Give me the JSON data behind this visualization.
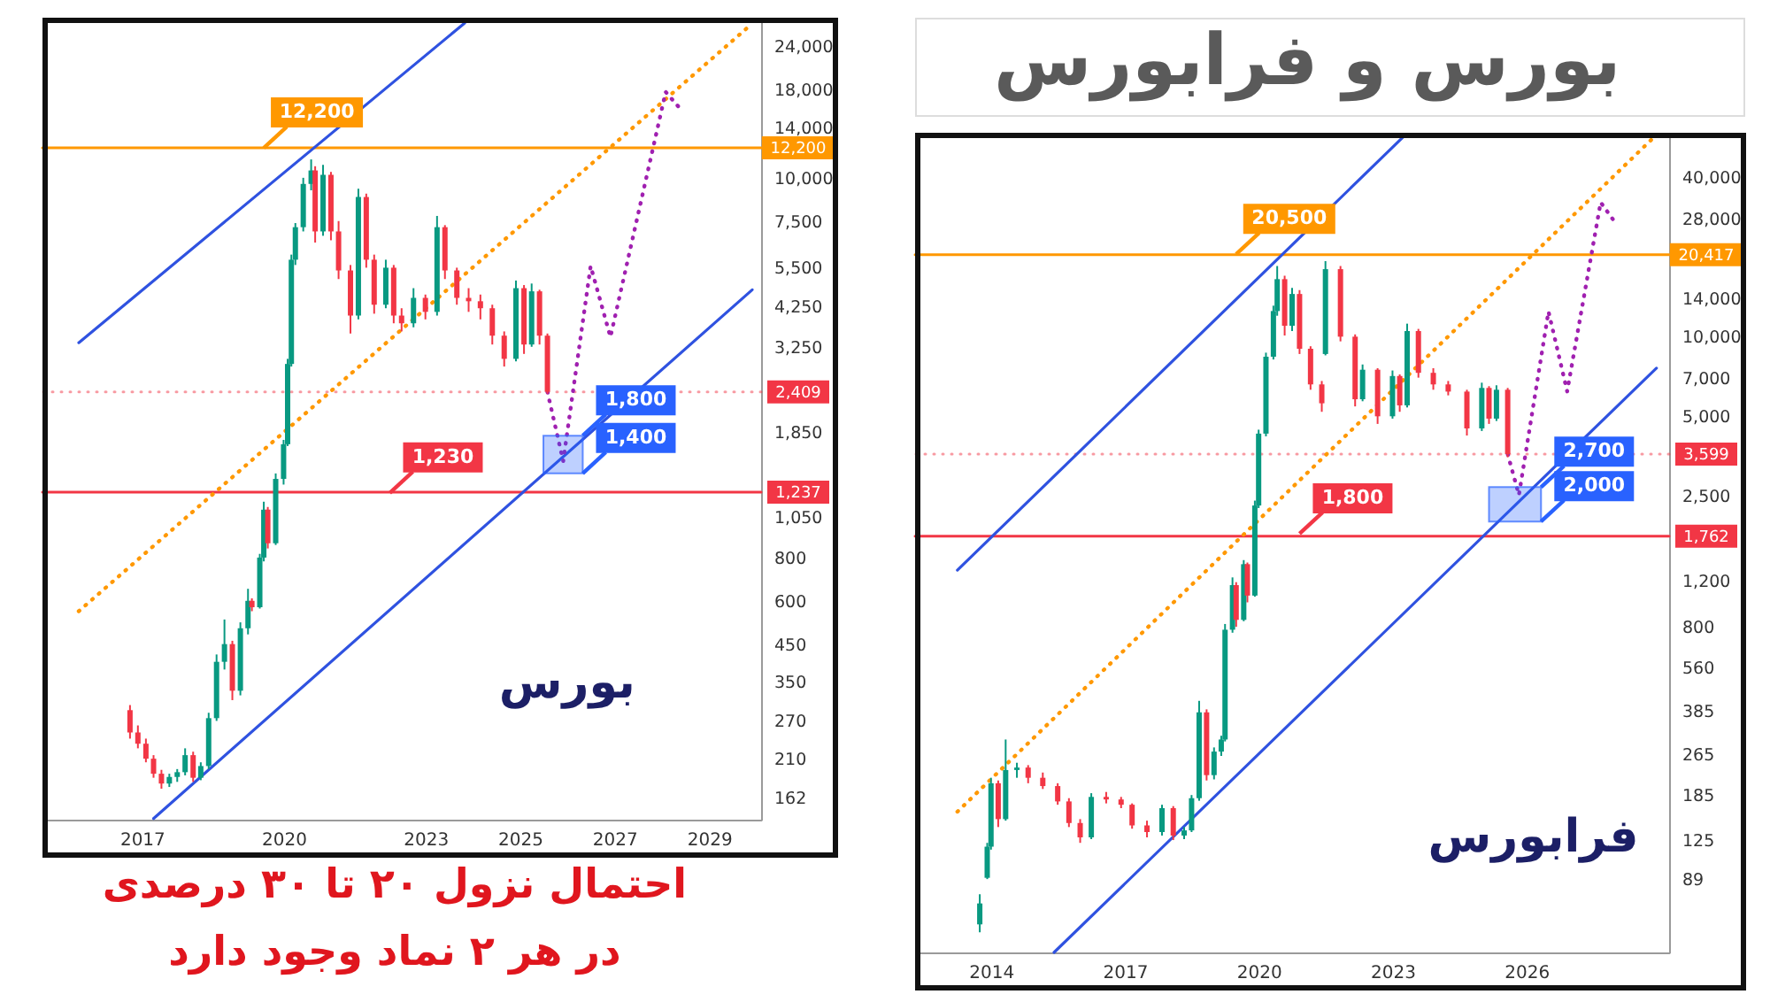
{
  "chart_data": [
    {
      "type": "candlestick",
      "x": [
        "2016-10",
        "2016-12",
        "2017-02",
        "2017-04",
        "2017-06",
        "2017-08",
        "2017-10",
        "2017-12",
        "2018-02",
        "2018-04",
        "2018-06",
        "2018-08",
        "2018-10",
        "2018-12",
        "2019-02",
        "2019-04",
        "2019-05",
        "2019-07",
        "2019-08",
        "2019-09",
        "2019-11",
        "2020-01",
        "2020-02",
        "2020-03",
        "2020-04",
        "2020-06",
        "2020-08",
        "2020-09",
        "2020-11",
        "2021-01",
        "2021-03",
        "2021-06",
        "2021-08",
        "2021-10",
        "2021-12",
        "2022-03",
        "2022-05",
        "2022-07",
        "2022-10",
        "2023-01",
        "2023-04",
        "2023-06",
        "2023-09",
        "2023-12",
        "2024-03",
        "2024-06",
        "2024-09",
        "2024-12",
        "2025-02",
        "2025-04",
        "2025-06",
        "2025-08"
      ],
      "ohlc": [
        [
          290,
          300,
          240,
          250
        ],
        [
          250,
          262,
          225,
          232
        ],
        [
          232,
          240,
          205,
          210
        ],
        [
          210,
          215,
          185,
          190
        ],
        [
          190,
          195,
          172,
          178
        ],
        [
          178,
          190,
          174,
          186
        ],
        [
          186,
          196,
          180,
          192
        ],
        [
          192,
          225,
          188,
          215
        ],
        [
          215,
          220,
          180,
          185
        ],
        [
          185,
          205,
          182,
          200
        ],
        [
          200,
          285,
          196,
          275
        ],
        [
          275,
          420,
          270,
          400
        ],
        [
          400,
          530,
          380,
          450
        ],
        [
          450,
          460,
          310,
          330
        ],
        [
          330,
          520,
          320,
          500
        ],
        [
          500,
          650,
          480,
          600
        ],
        [
          600,
          610,
          560,
          575
        ],
        [
          575,
          820,
          570,
          800
        ],
        [
          800,
          1160,
          780,
          1100
        ],
        [
          1100,
          1120,
          850,
          880
        ],
        [
          880,
          1400,
          870,
          1350
        ],
        [
          1350,
          1750,
          1300,
          1700
        ],
        [
          1700,
          3000,
          1680,
          2900
        ],
        [
          2900,
          6000,
          2850,
          5800
        ],
        [
          5800,
          7400,
          5600,
          7200
        ],
        [
          7200,
          10000,
          7000,
          9600
        ],
        [
          9600,
          11300,
          9200,
          10500
        ],
        [
          10500,
          10800,
          6500,
          7000
        ],
        [
          7000,
          10900,
          6800,
          10200
        ],
        [
          10200,
          10400,
          6600,
          7000
        ],
        [
          7000,
          7500,
          5100,
          5400
        ],
        [
          5400,
          5600,
          3550,
          4000
        ],
        [
          4000,
          9300,
          3900,
          8800
        ],
        [
          8800,
          9000,
          5500,
          5800
        ],
        [
          5800,
          6000,
          4050,
          4300
        ],
        [
          4300,
          5800,
          4200,
          5500
        ],
        [
          5500,
          5600,
          3800,
          4000
        ],
        [
          4000,
          4200,
          3600,
          3800
        ],
        [
          3800,
          4800,
          3700,
          4500
        ],
        [
          4500,
          4600,
          3900,
          4100
        ],
        [
          4100,
          7760,
          4000,
          7200
        ],
        [
          7200,
          7300,
          5100,
          5400
        ],
        [
          5400,
          5500,
          4300,
          4500
        ],
        [
          4500,
          4800,
          4100,
          4400
        ],
        [
          4400,
          4600,
          3900,
          4200
        ],
        [
          4200,
          4300,
          3300,
          3500
        ],
        [
          3500,
          3600,
          2850,
          3000
        ],
        [
          3000,
          5050,
          2950,
          4800
        ],
        [
          4800,
          4900,
          3100,
          3300
        ],
        [
          3300,
          4950,
          3250,
          4700
        ],
        [
          4700,
          4750,
          3300,
          3500
        ],
        [
          3500,
          3550,
          2380,
          2409
        ]
      ],
      "colors": [
        "#f23645",
        "#f23645",
        "#f23645",
        "#f23645",
        "#f23645",
        "#089981",
        "#089981",
        "#089981",
        "#f23645",
        "#089981",
        "#089981",
        "#089981",
        "#089981",
        "#f23645",
        "#089981",
        "#089981",
        "#f23645",
        "#089981",
        "#089981",
        "#f23645",
        "#089981",
        "#089981",
        "#089981",
        "#089981",
        "#089981",
        "#089981",
        "#089981",
        "#f23645",
        "#089981",
        "#f23645",
        "#f23645",
        "#f23645",
        "#089981",
        "#f23645",
        "#f23645",
        "#089981",
        "#f23645",
        "#f23645",
        "#089981",
        "#f23645",
        "#089981",
        "#f23645",
        "#f23645",
        "#f23645",
        "#f23645",
        "#f23645",
        "#f23645",
        "#089981",
        "#f23645",
        "#089981",
        "#f23645",
        "#f23645"
      ],
      "series": [
        {
          "type": "line",
          "x": [
            "2015-09",
            "2023-11"
          ],
          "values": [
            3340,
            28000
          ],
          "color": "#2f52e0",
          "line_style": "solid"
        },
        {
          "type": "line",
          "x": [
            "2017-04",
            "2029-12"
          ],
          "values": [
            141,
            4750
          ],
          "color": "#2f52e0",
          "line_style": "solid"
        },
        {
          "type": "line",
          "x": [
            "2015-09",
            "2029-12"
          ],
          "values": [
            560,
            27900
          ],
          "color": "#ff9800",
          "line_style": "dotted"
        },
        {
          "type": "line",
          "x": [
            "2025-08",
            "2025-12",
            "2026-07",
            "2026-12",
            "2028-02",
            "2028-06"
          ],
          "values": [
            2409,
            1520,
            5560,
            3470,
            17700,
            15700
          ],
          "color": "#a020b0",
          "line_style": "dotted"
        },
        {
          "type": "area",
          "x": [
            "2025-07",
            "2026-05"
          ],
          "values": [
            null,
            null
          ],
          "lower": [
            1400,
            1400
          ],
          "upper": [
            1800,
            1800
          ],
          "color": "#2962ff"
        }
      ],
      "ref_lines": [
        {
          "axis": "y",
          "value": 12200,
          "label": "12,200",
          "color": "#ff9800",
          "line_style": "solid"
        },
        {
          "axis": "y",
          "value": 2409,
          "label": "2,409",
          "color": "#f23645",
          "line_style": "dotted"
        },
        {
          "axis": "y",
          "value": 1237,
          "label": "1,237",
          "color": "#f23645",
          "line_style": "solid"
        }
      ],
      "annotations": [
        {
          "text": "12,200",
          "x": "2019-08",
          "y": 12200
        },
        {
          "text": "1,230",
          "x": "2022-04",
          "y": 1230
        },
        {
          "text": "1,800",
          "x": "2026-05",
          "y": 1800
        },
        {
          "text": "1,400",
          "x": "2026-05",
          "y": 1400
        },
        "بورس",
        "احتمال نزول ۲۰ تا ۳۰ درصدی\nدر هر ۲ نماد وجود دارد"
      ],
      "xlim": [
        "2015-02",
        "2029-12"
      ],
      "xticks": [
        "2017",
        "2020",
        "2023",
        "2025",
        "2027",
        "2029"
      ],
      "ylim": [
        140,
        29000
      ],
      "yticks": [
        162,
        210,
        270,
        350,
        450,
        600,
        800,
        {
          "value": 1050,
          "label": "1,050"
        },
        {
          "value": 1850,
          "label": "1,850"
        },
        {
          "value": 3250,
          "label": "3,250"
        },
        {
          "value": 4250,
          "label": "4,250"
        },
        {
          "value": 5500,
          "label": "5,500"
        },
        {
          "value": 7500,
          "label": "7,500"
        },
        {
          "value": 10000,
          "label": "10,000"
        },
        {
          "value": 14000,
          "label": "14,000"
        },
        {
          "value": 18000,
          "label": "18,000"
        },
        {
          "value": 24000,
          "label": "24,000"
        }
      ],
      "log": "y",
      "grid": false
    },
    {
      "type": "candlestick",
      "title": "بورس و فرابورس",
      "x": [
        "2013-10",
        "2013-12",
        "2014-01",
        "2014-03",
        "2014-05",
        "2014-08",
        "2014-11",
        "2015-03",
        "2015-07",
        "2015-10",
        "2016-01",
        "2016-04",
        "2016-08",
        "2016-12",
        "2017-03",
        "2017-07",
        "2017-11",
        "2018-02",
        "2018-05",
        "2018-07",
        "2018-09",
        "2018-11",
        "2019-01",
        "2019-03",
        "2019-04",
        "2019-06",
        "2019-07",
        "2019-09",
        "2019-10",
        "2019-12",
        "2020-01",
        "2020-03",
        "2020-05",
        "2020-06",
        "2020-08",
        "2020-10",
        "2020-12",
        "2021-03",
        "2021-06",
        "2021-07",
        "2021-11",
        "2022-03",
        "2022-05",
        "2022-09",
        "2023-01",
        "2023-03",
        "2023-05",
        "2023-08",
        "2023-12",
        "2024-04",
        "2024-09",
        "2025-01",
        "2025-03",
        "2025-05",
        "2025-08"
      ],
      "ohlc": [
        [
          60,
          78,
          56,
          72
        ],
        [
          90,
          122,
          89,
          118
        ],
        [
          118,
          215,
          115,
          205
        ],
        [
          205,
          210,
          140,
          150
        ],
        [
          150,
          300,
          148,
          230
        ],
        [
          230,
          245,
          215,
          235
        ],
        [
          235,
          240,
          205,
          215
        ],
        [
          215,
          225,
          195,
          200
        ],
        [
          200,
          205,
          170,
          175
        ],
        [
          175,
          180,
          140,
          145
        ],
        [
          145,
          150,
          122,
          128
        ],
        [
          128,
          188,
          126,
          182
        ],
        [
          182,
          190,
          172,
          178
        ],
        [
          178,
          182,
          165,
          170
        ],
        [
          170,
          172,
          138,
          142
        ],
        [
          142,
          148,
          128,
          134
        ],
        [
          134,
          170,
          130,
          165
        ],
        [
          165,
          168,
          125,
          130
        ],
        [
          130,
          140,
          126,
          136
        ],
        [
          136,
          185,
          134,
          180
        ],
        [
          180,
          420,
          176,
          380
        ],
        [
          380,
          390,
          210,
          220
        ],
        [
          220,
          280,
          212,
          270
        ],
        [
          270,
          310,
          260,
          300
        ],
        [
          300,
          820,
          295,
          780
        ],
        [
          780,
          1230,
          760,
          1150
        ],
        [
          1150,
          1180,
          800,
          850
        ],
        [
          850,
          1430,
          840,
          1380
        ],
        [
          1380,
          1400,
          990,
          1050
        ],
        [
          1050,
          2400,
          1040,
          2300
        ],
        [
          2300,
          4450,
          2250,
          4300
        ],
        [
          4300,
          8700,
          4200,
          8400
        ],
        [
          8400,
          13100,
          8200,
          12500
        ],
        [
          12500,
          18500,
          12000,
          16500
        ],
        [
          16500,
          17000,
          10100,
          11000
        ],
        [
          11000,
          15300,
          10500,
          14500
        ],
        [
          14500,
          15000,
          8600,
          9000
        ],
        [
          9000,
          9200,
          6300,
          6600
        ],
        [
          6600,
          6800,
          5200,
          5600
        ],
        [
          8600,
          19300,
          8500,
          18000
        ],
        [
          18000,
          18500,
          9600,
          10000
        ],
        [
          10000,
          10200,
          5450,
          5800
        ],
        [
          5800,
          7850,
          5700,
          7500
        ],
        [
          7500,
          7600,
          4680,
          5000
        ],
        [
          5000,
          7450,
          4900,
          7100
        ],
        [
          7100,
          7200,
          5200,
          5500
        ],
        [
          5500,
          11200,
          5400,
          10500
        ],
        [
          10500,
          10700,
          7000,
          7300
        ],
        [
          7300,
          7600,
          6300,
          6600
        ],
        [
          6600,
          6800,
          6000,
          6200
        ],
        [
          6200,
          6300,
          4230,
          4500
        ],
        [
          4500,
          6700,
          4400,
          6400
        ],
        [
          6400,
          6500,
          4680,
          4900
        ],
        [
          4900,
          6550,
          4800,
          6300
        ],
        [
          6300,
          6400,
          3500,
          3599
        ]
      ],
      "colors": [
        "#089981",
        "#089981",
        "#089981",
        "#f23645",
        "#089981",
        "#089981",
        "#f23645",
        "#f23645",
        "#f23645",
        "#f23645",
        "#f23645",
        "#089981",
        "#f23645",
        "#f23645",
        "#f23645",
        "#f23645",
        "#089981",
        "#f23645",
        "#089981",
        "#089981",
        "#089981",
        "#f23645",
        "#089981",
        "#089981",
        "#089981",
        "#089981",
        "#f23645",
        "#089981",
        "#f23645",
        "#089981",
        "#089981",
        "#089981",
        "#089981",
        "#089981",
        "#f23645",
        "#089981",
        "#f23645",
        "#f23645",
        "#f23645",
        "#089981",
        "#f23645",
        "#f23645",
        "#089981",
        "#f23645",
        "#089981",
        "#f23645",
        "#089981",
        "#f23645",
        "#f23645",
        "#f23645",
        "#f23645",
        "#089981",
        "#f23645",
        "#089981",
        "#f23645"
      ],
      "series": [
        {
          "type": "line",
          "x": [
            "2013-04",
            "2023-04"
          ],
          "values": [
            1310,
            57000
          ],
          "color": "#2f52e0",
          "line_style": "solid"
        },
        {
          "type": "line",
          "x": [
            "2015-06",
            "2028-12"
          ],
          "values": [
            47,
            7600
          ],
          "color": "#2f52e0",
          "line_style": "solid"
        },
        {
          "type": "line",
          "x": [
            "2013-04",
            "2028-12"
          ],
          "values": [
            160,
            58000
          ],
          "color": "#ff9800",
          "line_style": "dotted"
        },
        {
          "type": "line",
          "x": [
            "2025-08",
            "2025-11",
            "2026-07",
            "2026-12",
            "2027-09",
            "2028-01"
          ],
          "values": [
            3599,
            2520,
            12450,
            6210,
            32200,
            26900
          ],
          "color": "#a020b0",
          "line_style": "dotted"
        },
        {
          "type": "area",
          "x": [
            "2025-03",
            "2026-05"
          ],
          "values": [
            null,
            null
          ],
          "lower": [
            2000,
            2000
          ],
          "upper": [
            2700,
            2700
          ],
          "color": "#2962ff"
        }
      ],
      "ref_lines": [
        {
          "axis": "y",
          "value": 20417,
          "label": "20,417",
          "color": "#ff9800",
          "line_style": "solid"
        },
        {
          "axis": "y",
          "value": 3599,
          "label": "3,599",
          "color": "#f23645",
          "line_style": "dotted"
        },
        {
          "axis": "y",
          "value": 1762,
          "label": "1,762",
          "color": "#f23645",
          "line_style": "solid"
        }
      ],
      "annotations": [
        {
          "text": "20,500",
          "x": "2019-07",
          "y": 20500
        },
        {
          "text": "1,800",
          "x": "2020-12",
          "y": 1800
        },
        {
          "text": "2,700",
          "x": "2026-05",
          "y": 2700
        },
        {
          "text": "2,000",
          "x": "2026-05",
          "y": 2000
        },
        "فرابورس"
      ],
      "xlim": [
        "2012-07",
        "2029-01"
      ],
      "xticks": [
        "2014",
        "2017",
        "2020",
        "2023",
        "2026"
      ],
      "ylim": [
        47,
        59000
      ],
      "yticks": [
        89,
        125,
        185,
        265,
        385,
        560,
        800,
        {
          "value": 1200,
          "label": "1,200"
        },
        {
          "value": 2500,
          "label": "2,500"
        },
        {
          "value": 5000,
          "label": "5,000"
        },
        {
          "value": 7000,
          "label": "7,000"
        },
        {
          "value": 10000,
          "label": "10,000"
        },
        {
          "value": 14000,
          "label": "14,000"
        },
        {
          "value": 28000,
          "label": "28,000"
        },
        {
          "value": 40000,
          "label": "40,000"
        }
      ],
      "log": "y",
      "grid": false
    }
  ]
}
